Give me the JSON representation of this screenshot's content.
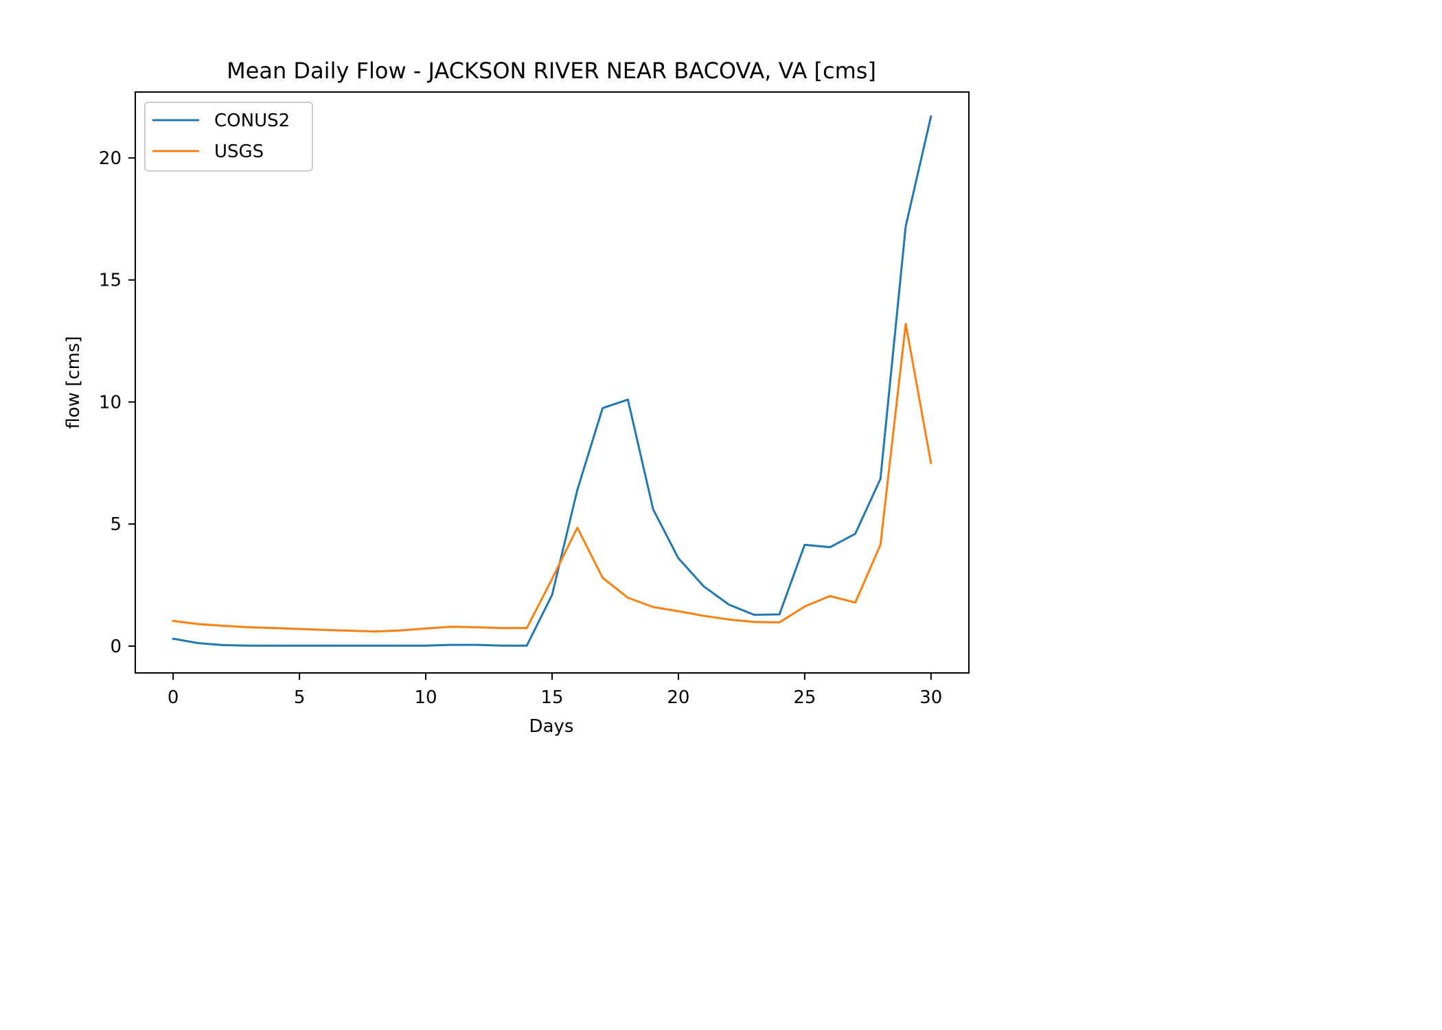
{
  "chart_data": {
    "type": "line",
    "title": "Mean Daily Flow - JACKSON RIVER NEAR BACOVA, VA [cms]",
    "xlabel": "Days",
    "ylabel": "flow [cms]",
    "xlim": [
      -1.5,
      31.5
    ],
    "ylim": [
      -1.1,
      22.7
    ],
    "xticks": [
      0,
      5,
      10,
      15,
      20,
      25,
      30
    ],
    "xtick_labels": [
      "0",
      "5",
      "10",
      "15",
      "20",
      "25",
      "30"
    ],
    "yticks": [
      0,
      5,
      10,
      15,
      20
    ],
    "ytick_labels": [
      "0",
      "5",
      "10",
      "15",
      "20"
    ],
    "grid": false,
    "legend_position": "top-left",
    "x": [
      0,
      1,
      2,
      3,
      4,
      5,
      6,
      7,
      8,
      9,
      10,
      11,
      12,
      13,
      14,
      15,
      16,
      17,
      18,
      19,
      20,
      21,
      22,
      23,
      24,
      25,
      26,
      27,
      28,
      29,
      30
    ],
    "series": [
      {
        "name": "CONUS2",
        "color": "#1f77b4",
        "values": [
          0.3,
          0.12,
          0.04,
          0.02,
          0.02,
          0.02,
          0.02,
          0.02,
          0.02,
          0.02,
          0.02,
          0.05,
          0.05,
          0.02,
          0.02,
          2.1,
          6.4,
          9.75,
          10.1,
          5.6,
          3.6,
          2.45,
          1.7,
          1.28,
          1.3,
          4.15,
          4.05,
          4.6,
          6.85,
          17.2,
          21.7
        ]
      },
      {
        "name": "USGS",
        "color": "#ff7f0e",
        "values": [
          1.03,
          0.9,
          0.83,
          0.77,
          0.74,
          0.7,
          0.66,
          0.63,
          0.6,
          0.64,
          0.72,
          0.79,
          0.77,
          0.74,
          0.74,
          2.75,
          4.85,
          2.8,
          1.98,
          1.6,
          1.43,
          1.24,
          1.09,
          0.99,
          0.97,
          1.62,
          2.05,
          1.78,
          4.15,
          13.2,
          7.5
        ]
      }
    ]
  }
}
